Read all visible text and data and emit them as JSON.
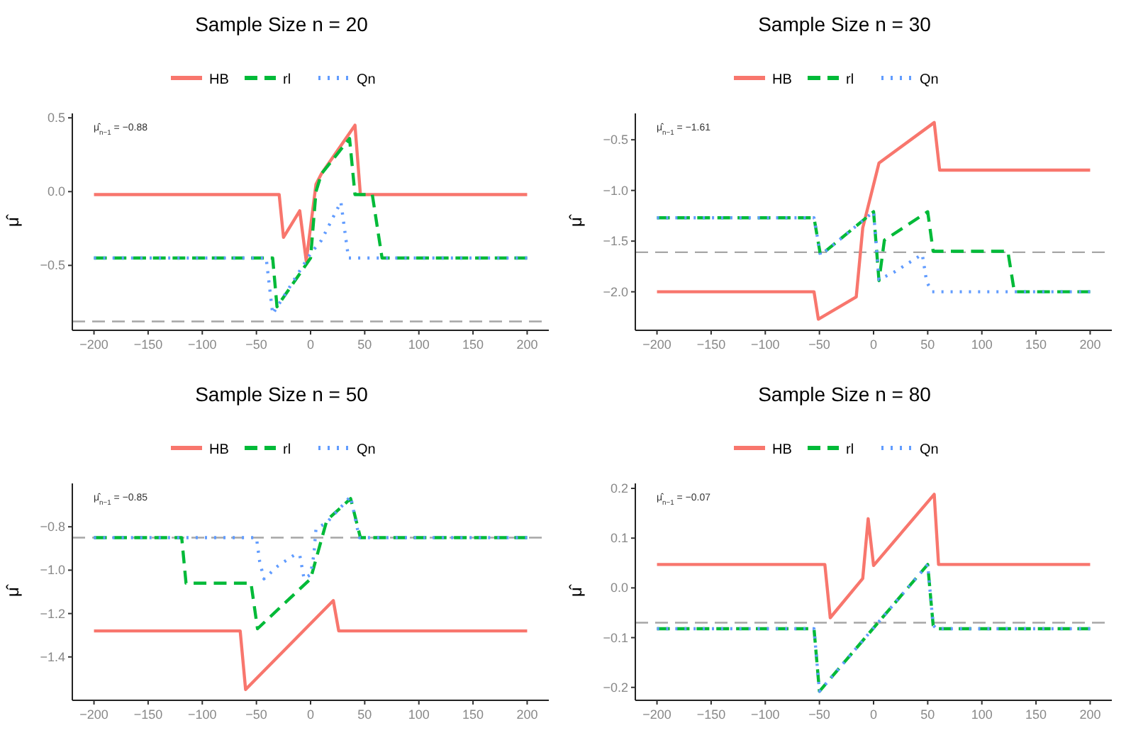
{
  "chart_data": [
    {
      "type": "line",
      "title": "Sample Size n = 20",
      "ylabel": "μ̂",
      "legend": "top",
      "grid": false,
      "annotations": [
        "μ̂$_{n−1}$ = −0.88"
      ],
      "xlim": [
        -220,
        220
      ],
      "xticks": [
        -200,
        -150,
        -100,
        -50,
        0,
        50,
        100,
        150,
        200
      ],
      "ylim": [
        -0.94,
        0.53
      ],
      "yticks": [
        {
          "value": 0.5,
          "label": "0.5"
        },
        {
          "value": 0,
          "label": "0.0"
        },
        {
          "value": -0.5,
          "label": "−0.5"
        }
      ],
      "ref_lines": [
        {
          "axis": "y",
          "value": -0.88,
          "color": "#a6a6a6",
          "line_style": "dashed"
        }
      ],
      "series": [
        {
          "name": "HB",
          "color": "#f8766d",
          "line_style": "solid",
          "x": [
            -200,
            -29,
            -25,
            -10,
            -4,
            5,
            10,
            41,
            46,
            200
          ],
          "values": [
            -0.02,
            -0.02,
            -0.31,
            -0.13,
            -0.47,
            0.05,
            0.12,
            0.45,
            -0.02,
            -0.02
          ]
        },
        {
          "name": "rl",
          "color": "#00ba38",
          "line_style": "dashed",
          "x": [
            -200,
            -35,
            -31,
            0,
            5,
            10,
            36,
            41,
            57,
            66,
            200
          ],
          "values": [
            -0.45,
            -0.45,
            -0.78,
            -0.45,
            0.0,
            0.12,
            0.36,
            -0.02,
            -0.02,
            -0.45,
            -0.45
          ]
        },
        {
          "name": "Qn",
          "color": "#619cff",
          "line_style": "dotted",
          "x": [
            -200,
            -41,
            -35,
            0,
            10,
            28,
            35,
            200
          ],
          "values": [
            -0.45,
            -0.45,
            -0.83,
            -0.42,
            -0.33,
            -0.07,
            -0.45,
            -0.45
          ]
        }
      ]
    },
    {
      "type": "line",
      "title": "Sample Size n = 30",
      "ylabel": "μ̂",
      "legend": "top",
      "grid": false,
      "annotations": [
        "μ̂$_{n−1}$ = −1.61"
      ],
      "xlim": [
        -220,
        220
      ],
      "xticks": [
        -200,
        -150,
        -100,
        -50,
        0,
        50,
        100,
        150,
        200
      ],
      "ylim": [
        -2.38,
        -0.24
      ],
      "yticks": [
        {
          "value": -0.5,
          "label": "−0.5"
        },
        {
          "value": -1,
          "label": "−1.0"
        },
        {
          "value": -1.5,
          "label": "−1.5"
        },
        {
          "value": -2,
          "label": "−2.0"
        }
      ],
      "ref_lines": [
        {
          "axis": "y",
          "value": -1.61,
          "color": "#a6a6a6",
          "line_style": "dashed"
        }
      ],
      "series": [
        {
          "name": "HB",
          "color": "#f8766d",
          "line_style": "solid",
          "x": [
            -200,
            -55,
            -51,
            -16,
            -10,
            5,
            56,
            61,
            200
          ],
          "values": [
            -2.0,
            -2.0,
            -2.27,
            -2.05,
            -1.37,
            -0.73,
            -0.33,
            -0.8,
            -0.8
          ]
        },
        {
          "name": "rl",
          "color": "#00ba38",
          "line_style": "dashed",
          "x": [
            -200,
            -55,
            -49,
            0,
            5,
            10,
            50,
            55,
            124,
            130,
            200
          ],
          "values": [
            -1.27,
            -1.27,
            -1.64,
            -1.21,
            -1.89,
            -1.49,
            -1.21,
            -1.6,
            -1.6,
            -2.0,
            -2.0
          ]
        },
        {
          "name": "Qn",
          "color": "#619cff",
          "line_style": "dotted",
          "x": [
            -200,
            -55,
            -49,
            0,
            5,
            20,
            45,
            49,
            54,
            200
          ],
          "values": [
            -1.27,
            -1.27,
            -1.64,
            -1.21,
            -1.88,
            -1.8,
            -1.63,
            -1.9,
            -2.0,
            -2.0
          ]
        }
      ]
    },
    {
      "type": "line",
      "title": "Sample Size n = 50",
      "ylabel": "μ̂",
      "legend": "top",
      "grid": false,
      "annotations": [
        "μ̂$_{n−1}$ = −0.85"
      ],
      "xlim": [
        -220,
        220
      ],
      "xticks": [
        -200,
        -150,
        -100,
        -50,
        0,
        50,
        100,
        150,
        200
      ],
      "ylim": [
        -1.6,
        -0.6
      ],
      "yticks": [
        {
          "value": -0.8,
          "label": "−0.8"
        },
        {
          "value": -1,
          "label": "−1.0"
        },
        {
          "value": -1.2,
          "label": "−1.2"
        },
        {
          "value": -1.4,
          "label": "−1.4"
        }
      ],
      "ref_lines": [
        {
          "axis": "y",
          "value": -0.85,
          "color": "#a6a6a6",
          "line_style": "dashed"
        }
      ],
      "series": [
        {
          "name": "HB",
          "color": "#f8766d",
          "line_style": "solid",
          "x": [
            -200,
            -65,
            -60,
            21,
            26,
            200
          ],
          "values": [
            -1.28,
            -1.28,
            -1.55,
            -1.14,
            -1.28,
            -1.28
          ]
        },
        {
          "name": "rl",
          "color": "#00ba38",
          "line_style": "dashed",
          "x": [
            -200,
            -119,
            -115,
            -55,
            -49,
            0,
            15,
            37,
            46,
            200
          ],
          "values": [
            -0.85,
            -0.85,
            -1.06,
            -1.06,
            -1.27,
            -1.04,
            -0.77,
            -0.67,
            -0.85,
            -0.85
          ]
        },
        {
          "name": "Qn",
          "color": "#619cff",
          "line_style": "dotted",
          "x": [
            -200,
            -50,
            -47,
            -43,
            -30,
            -15,
            -10,
            -6,
            0,
            3,
            5,
            15,
            37,
            42,
            45,
            200
          ],
          "values": [
            -0.85,
            -0.85,
            -0.96,
            -1.04,
            -0.98,
            -0.93,
            -0.93,
            -1.04,
            -1.02,
            -0.93,
            -0.81,
            -0.78,
            -0.66,
            -0.78,
            -0.85,
            -0.85
          ]
        }
      ]
    },
    {
      "type": "line",
      "title": "Sample Size n = 80",
      "ylabel": "μ̂",
      "legend": "top",
      "grid": false,
      "annotations": [
        "μ̂$_{n−1}$ = −0.07"
      ],
      "xlim": [
        -220,
        220
      ],
      "xticks": [
        -200,
        -150,
        -100,
        -50,
        0,
        50,
        100,
        150,
        200
      ],
      "ylim": [
        -0.226,
        0.21
      ],
      "yticks": [
        {
          "value": 0.2,
          "label": "0.2"
        },
        {
          "value": 0.1,
          "label": "0.1"
        },
        {
          "value": 0,
          "label": "0.0"
        },
        {
          "value": -0.1,
          "label": "−0.1"
        },
        {
          "value": -0.2,
          "label": "−0.2"
        }
      ],
      "ref_lines": [
        {
          "axis": "y",
          "value": -0.07,
          "color": "#a6a6a6",
          "line_style": "dashed"
        }
      ],
      "series": [
        {
          "name": "HB",
          "color": "#f8766d",
          "line_style": "solid",
          "x": [
            -200,
            -45,
            -40,
            -10,
            -5,
            0,
            56,
            60,
            200
          ],
          "values": [
            0.047,
            0.047,
            -0.06,
            0.019,
            0.139,
            0.045,
            0.188,
            0.047,
            0.047
          ]
        },
        {
          "name": "rl",
          "color": "#00ba38",
          "line_style": "dashed",
          "x": [
            -200,
            -55,
            -50,
            50,
            55,
            58,
            200
          ],
          "values": [
            -0.082,
            -0.082,
            -0.208,
            0.047,
            -0.075,
            -0.082,
            -0.082
          ]
        },
        {
          "name": "Qn",
          "color": "#619cff",
          "line_style": "dotted",
          "x": [
            -200,
            -55,
            -50,
            50,
            55,
            58,
            200
          ],
          "values": [
            -0.082,
            -0.082,
            -0.208,
            0.047,
            -0.075,
            -0.082,
            -0.082
          ]
        }
      ]
    }
  ]
}
